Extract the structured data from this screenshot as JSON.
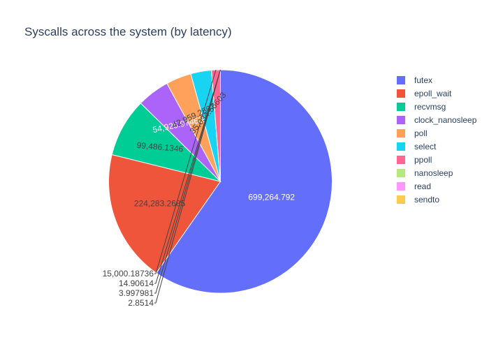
{
  "chart_data": {
    "type": "pie",
    "title": "Syscalls across the system (by latency)",
    "legend_position": "right",
    "labels": [
      "futex",
      "epoll_wait",
      "recvmsg",
      "clock_nanosleep",
      "poll",
      "select",
      "ppoll",
      "nanosleep",
      "read",
      "sendto"
    ],
    "values": [
      699264.792,
      224283.2685,
      99486.1346,
      54925.97463,
      42959.2507,
      35034.56603,
      15000.18736,
      14.90614,
      3.997981,
      2.8514
    ],
    "value_labels": [
      "699,264.792",
      "224,283.2685",
      "99,486.1346",
      "54,925.97463",
      "42,959.2507",
      "35,034.56603",
      "15,000.18736",
      "14.90614",
      "3.997981",
      "2.8514"
    ],
    "colors": [
      "#636efa",
      "#EF553B",
      "#00cc96",
      "#ab63fa",
      "#FFA15A",
      "#19d3f3",
      "#FF6692",
      "#B6E880",
      "#FF97FF",
      "#FECB52"
    ]
  }
}
